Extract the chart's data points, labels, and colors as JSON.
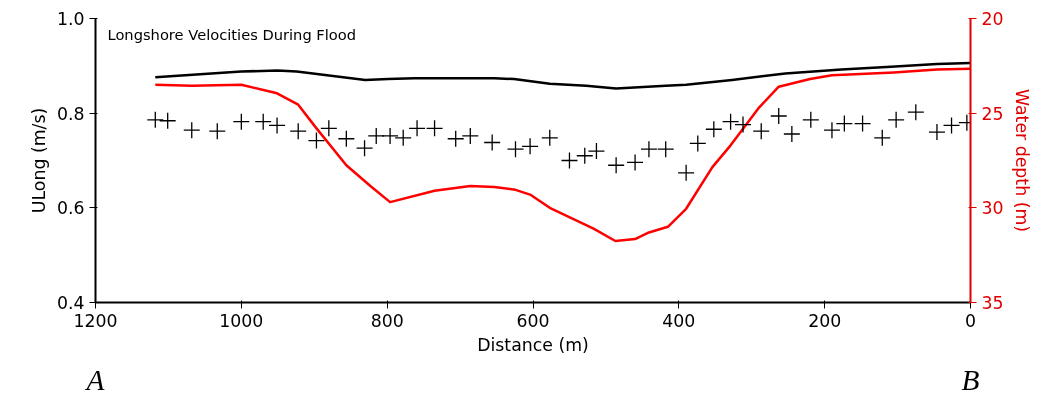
{
  "chart_data": {
    "type": "line",
    "title": "Longshore Velocities During Flood",
    "xlabel": "Distance (m)",
    "ylabel": "ULong (m/s)",
    "y2label": "Water depth (m)",
    "annotations": [
      "A",
      "B"
    ],
    "xlim": [
      1200,
      0
    ],
    "xticks": [
      1200,
      1000,
      800,
      600,
      400,
      200,
      0
    ],
    "ylim": [
      0.4,
      1.0
    ],
    "yticks": [
      0.4,
      0.6,
      0.8,
      {
        "value": 1.0,
        "label": "1.0"
      }
    ],
    "y2lim": [
      35,
      20
    ],
    "y2ticks": [
      20,
      25,
      30,
      35
    ],
    "grid": false,
    "series": [
      {
        "color": "#000000",
        "x": [
          1118,
          1000,
          951,
          924,
          830,
          799,
          762,
          653,
          626,
          577,
          527,
          486,
          418,
          390,
          327,
          254,
          177,
          109,
          46,
          0
        ],
        "values": [
          0.876,
          0.888,
          0.89,
          0.888,
          0.87,
          0.872,
          0.874,
          0.874,
          0.872,
          0.862,
          0.858,
          0.852,
          0.858,
          0.86,
          0.87,
          0.884,
          0.892,
          0.898,
          0.904,
          0.906
        ]
      },
      {
        "color": "#ff0000",
        "axis": "y2",
        "x": [
          1118,
          1068,
          1000,
          951,
          922,
          898,
          856,
          823,
          796,
          735,
          686,
          653,
          624,
          604,
          577,
          517,
          487,
          460,
          441,
          415,
          390,
          354,
          329,
          291,
          263,
          220,
          190,
          105,
          46,
          0
        ],
        "values": [
          23.5,
          23.55,
          23.5,
          23.95,
          24.55,
          25.75,
          27.75,
          28.85,
          29.7,
          29.1,
          28.85,
          28.9,
          29.05,
          29.3,
          30.0,
          31.1,
          31.75,
          31.65,
          31.3,
          31.0,
          30.05,
          27.85,
          26.7,
          24.75,
          23.6,
          23.2,
          23.0,
          22.85,
          22.7,
          22.65
        ]
      },
      {
        "type": "scatter",
        "marker": "cross",
        "color": "#000000",
        "x": [
          1118,
          1101,
          1068,
          1033,
          1000,
          970,
          951,
          922,
          897,
          880,
          856,
          831,
          815,
          796,
          778,
          759,
          735,
          706,
          686,
          656,
          624,
          604,
          577,
          550,
          529,
          513,
          486,
          460,
          441,
          418,
          390,
          374,
          352,
          329,
          312,
          287,
          263,
          245,
          219,
          190,
          173,
          148,
          121,
          102,
          75,
          46,
          26,
          5
        ],
        "values": [
          0.786,
          0.784,
          0.764,
          0.762,
          0.782,
          0.782,
          0.774,
          0.762,
          0.742,
          0.768,
          0.746,
          0.726,
          0.752,
          0.752,
          0.748,
          0.768,
          0.768,
          0.746,
          0.752,
          0.738,
          0.724,
          0.73,
          0.748,
          0.7,
          0.71,
          0.72,
          0.69,
          0.696,
          0.724,
          0.724,
          0.674,
          0.736,
          0.766,
          0.782,
          0.776,
          0.762,
          0.794,
          0.756,
          0.786,
          0.764,
          0.778,
          0.778,
          0.748,
          0.786,
          0.802,
          0.76,
          0.774,
          0.78
        ]
      }
    ]
  }
}
